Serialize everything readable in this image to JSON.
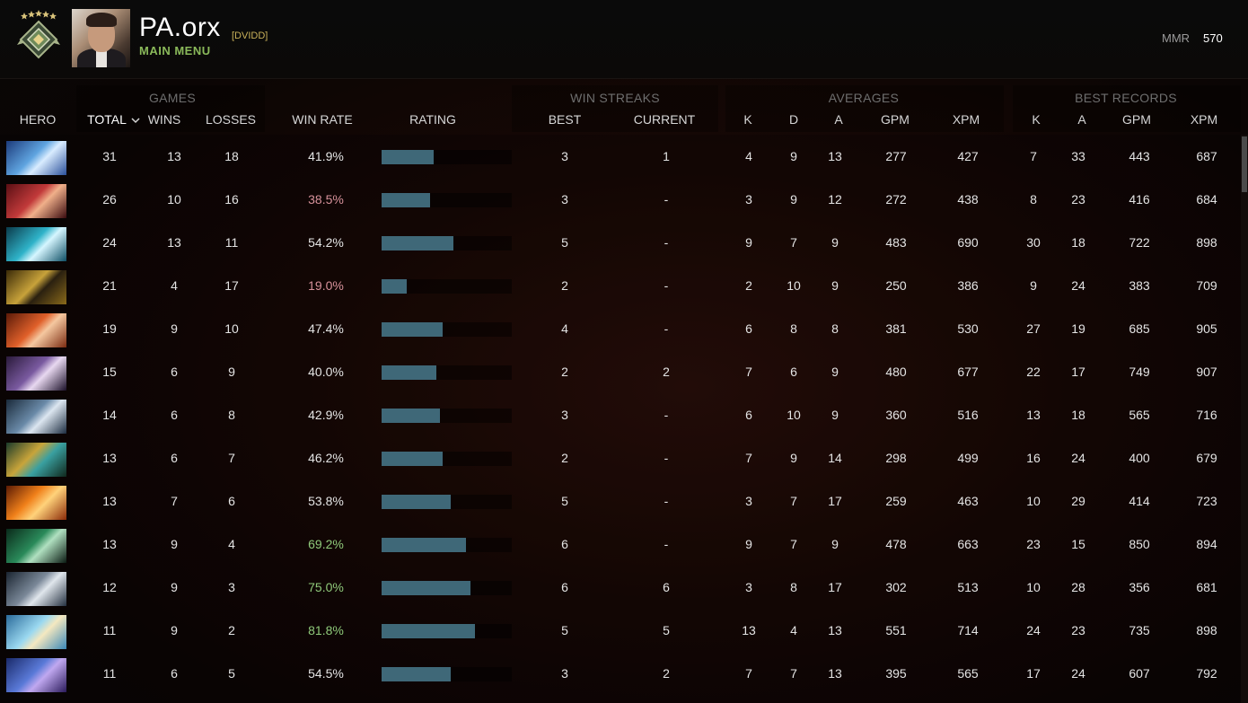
{
  "header": {
    "player_name": "PA.orx",
    "player_tag": "[DVIDD]",
    "main_menu_label": "MAIN MENU",
    "mmr_label": "MMR",
    "mmr_value": "570"
  },
  "groups": {
    "games": "GAMES",
    "win_streaks": "WIN STREAKS",
    "averages": "AVERAGES",
    "best_records": "BEST RECORDS"
  },
  "columns": {
    "hero": "HERO",
    "total": "TOTAL",
    "wins": "WINS",
    "losses": "LOSSES",
    "win_rate": "WIN RATE",
    "rating": "RATING",
    "best": "BEST",
    "current": "CURRENT",
    "avg_k": "K",
    "avg_d": "D",
    "avg_a": "A",
    "avg_gpm": "GPM",
    "avg_xpm": "XPM",
    "rec_k": "K",
    "rec_a": "A",
    "rec_gpm": "GPM",
    "rec_xpm": "XPM"
  },
  "colors": {
    "rating_bar": "#3f6878",
    "win_rate_good": "#8fc97a",
    "win_rate_bad": "#d6919a",
    "accent_green": "#8ab95a"
  },
  "rows": [
    {
      "hero_icon": "hero-blue-armored-icon",
      "total": "31",
      "wins": "13",
      "losses": "18",
      "win_rate": "41.9%",
      "rating": 0.4,
      "best": "3",
      "current": "1",
      "avg_k": "4",
      "avg_d": "9",
      "avg_a": "13",
      "avg_gpm": "277",
      "avg_xpm": "427",
      "rec_k": "7",
      "rec_a": "33",
      "rec_gpm": "443",
      "rec_xpm": "687"
    },
    {
      "hero_icon": "hero-red-queen-icon",
      "total": "26",
      "wins": "10",
      "losses": "16",
      "win_rate": "38.5%",
      "rating": 0.37,
      "best": "3",
      "current": "-",
      "avg_k": "3",
      "avg_d": "9",
      "avg_a": "12",
      "avg_gpm": "272",
      "avg_xpm": "438",
      "rec_k": "8",
      "rec_a": "23",
      "rec_gpm": "416",
      "rec_xpm": "684"
    },
    {
      "hero_icon": "hero-water-wave-icon",
      "total": "24",
      "wins": "13",
      "losses": "11",
      "win_rate": "54.2%",
      "rating": 0.55,
      "best": "5",
      "current": "-",
      "avg_k": "9",
      "avg_d": "7",
      "avg_a": "9",
      "avg_gpm": "483",
      "avg_xpm": "690",
      "rec_k": "30",
      "rec_a": "18",
      "rec_gpm": "722",
      "rec_xpm": "898"
    },
    {
      "hero_icon": "hero-golden-helmet-icon",
      "total": "21",
      "wins": "4",
      "losses": "17",
      "win_rate": "19.0%",
      "rating": 0.19,
      "best": "2",
      "current": "-",
      "avg_k": "2",
      "avg_d": "10",
      "avg_a": "9",
      "avg_gpm": "250",
      "avg_xpm": "386",
      "rec_k": "9",
      "rec_a": "24",
      "rec_gpm": "383",
      "rec_xpm": "709"
    },
    {
      "hero_icon": "hero-orange-hair-icon",
      "total": "19",
      "wins": "9",
      "losses": "10",
      "win_rate": "47.4%",
      "rating": 0.47,
      "best": "4",
      "current": "-",
      "avg_k": "6",
      "avg_d": "8",
      "avg_a": "8",
      "avg_gpm": "381",
      "avg_xpm": "530",
      "rec_k": "27",
      "rec_a": "19",
      "rec_gpm": "685",
      "rec_xpm": "905"
    },
    {
      "hero_icon": "hero-masked-purple-icon",
      "total": "15",
      "wins": "6",
      "losses": "9",
      "win_rate": "40.0%",
      "rating": 0.42,
      "best": "2",
      "current": "2",
      "avg_k": "7",
      "avg_d": "6",
      "avg_a": "9",
      "avg_gpm": "480",
      "avg_xpm": "677",
      "rec_k": "22",
      "rec_a": "17",
      "rec_gpm": "749",
      "rec_xpm": "907"
    },
    {
      "hero_icon": "hero-pale-hood-icon",
      "total": "14",
      "wins": "6",
      "losses": "8",
      "win_rate": "42.9%",
      "rating": 0.45,
      "best": "3",
      "current": "-",
      "avg_k": "6",
      "avg_d": "10",
      "avg_a": "9",
      "avg_gpm": "360",
      "avg_xpm": "516",
      "rec_k": "13",
      "rec_a": "18",
      "rec_gpm": "565",
      "rec_xpm": "716"
    },
    {
      "hero_icon": "hero-teal-goggles-icon",
      "total": "13",
      "wins": "6",
      "losses": "7",
      "win_rate": "46.2%",
      "rating": 0.47,
      "best": "2",
      "current": "-",
      "avg_k": "7",
      "avg_d": "9",
      "avg_a": "14",
      "avg_gpm": "298",
      "avg_xpm": "499",
      "rec_k": "16",
      "rec_a": "24",
      "rec_gpm": "400",
      "rec_xpm": "679"
    },
    {
      "hero_icon": "hero-fire-phoenix-icon",
      "total": "13",
      "wins": "7",
      "losses": "6",
      "win_rate": "53.8%",
      "rating": 0.53,
      "best": "5",
      "current": "-",
      "avg_k": "3",
      "avg_d": "7",
      "avg_a": "17",
      "avg_gpm": "259",
      "avg_xpm": "463",
      "rec_k": "10",
      "rec_a": "29",
      "rec_gpm": "414",
      "rec_xpm": "723"
    },
    {
      "hero_icon": "hero-green-assassin-icon",
      "total": "13",
      "wins": "9",
      "losses": "4",
      "win_rate": "69.2%",
      "rating": 0.65,
      "best": "6",
      "current": "-",
      "avg_k": "9",
      "avg_d": "7",
      "avg_a": "9",
      "avg_gpm": "478",
      "avg_xpm": "663",
      "rec_k": "23",
      "rec_a": "15",
      "rec_gpm": "850",
      "rec_xpm": "894"
    },
    {
      "hero_icon": "hero-gray-creature-icon",
      "total": "12",
      "wins": "9",
      "losses": "3",
      "win_rate": "75.0%",
      "rating": 0.68,
      "best": "6",
      "current": "6",
      "avg_k": "3",
      "avg_d": "8",
      "avg_a": "17",
      "avg_gpm": "302",
      "avg_xpm": "513",
      "rec_k": "10",
      "rec_a": "28",
      "rec_gpm": "356",
      "rec_xpm": "681"
    },
    {
      "hero_icon": "hero-light-cyan-icon",
      "total": "11",
      "wins": "9",
      "losses": "2",
      "win_rate": "81.8%",
      "rating": 0.72,
      "best": "5",
      "current": "5",
      "avg_k": "13",
      "avg_d": "4",
      "avg_a": "13",
      "avg_gpm": "551",
      "avg_xpm": "714",
      "rec_k": "24",
      "rec_a": "23",
      "rec_gpm": "735",
      "rec_xpm": "898"
    },
    {
      "hero_icon": "hero-blue-frog-icon",
      "total": "11",
      "wins": "6",
      "losses": "5",
      "win_rate": "54.5%",
      "rating": 0.53,
      "best": "3",
      "current": "2",
      "avg_k": "7",
      "avg_d": "7",
      "avg_a": "13",
      "avg_gpm": "395",
      "avg_xpm": "565",
      "rec_k": "17",
      "rec_a": "24",
      "rec_gpm": "607",
      "rec_xpm": "792"
    }
  ]
}
